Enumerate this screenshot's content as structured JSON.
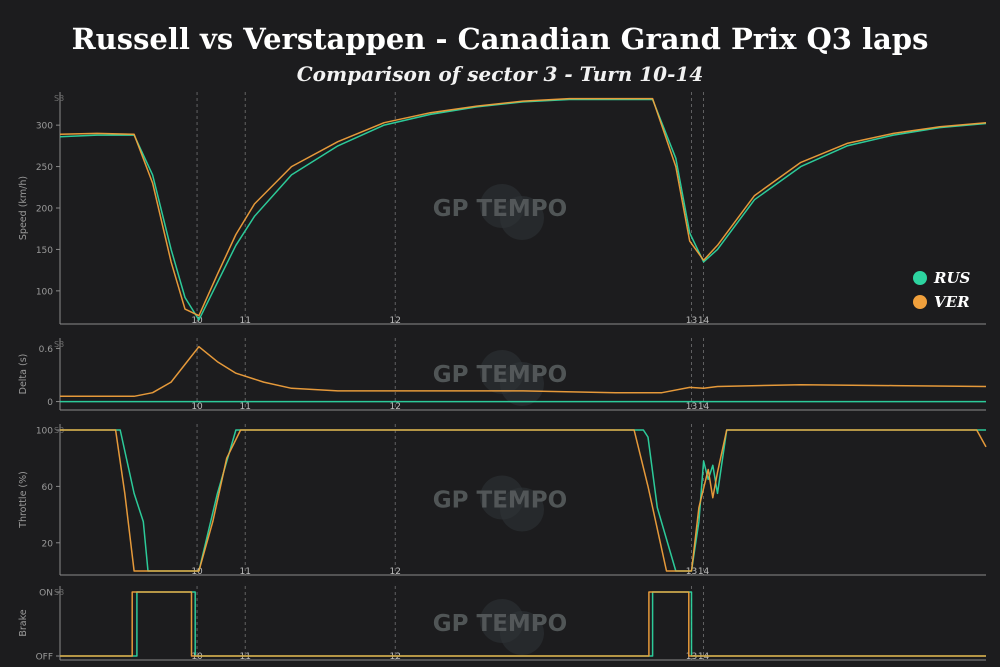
{
  "title": "Russell vs Verstappen - Canadian Grand Prix Q3 laps",
  "subtitle": "Comparison of sector 3 - Turn 10-14",
  "watermark": "GP TEMPO",
  "colors": {
    "RUS": "#2dd4a0",
    "VER": "#f0a03c",
    "background": "#1c1c1e",
    "axis": "#8a8a8a"
  },
  "legend": {
    "placement": "right",
    "entries": [
      {
        "label": "RUS",
        "color": "#2dd4a0"
      },
      {
        "label": "VER",
        "color": "#f0a03c"
      }
    ]
  },
  "chart_data": [
    {
      "type": "line",
      "ylabel": "Speed (km/h)",
      "ylim": [
        60,
        340
      ],
      "yticks": [
        100,
        150,
        200,
        250,
        300
      ],
      "sector_label": "S3",
      "markers": [
        {
          "x": 0.148,
          "label": "10"
        },
        {
          "x": 0.2,
          "label": "11"
        },
        {
          "x": 0.362,
          "label": "12"
        },
        {
          "x": 0.682,
          "label": "13"
        },
        {
          "x": 0.695,
          "label": "14"
        }
      ],
      "series": [
        {
          "name": "RUS",
          "x": [
            0,
            0.04,
            0.08,
            0.1,
            0.12,
            0.135,
            0.15,
            0.17,
            0.19,
            0.21,
            0.25,
            0.3,
            0.35,
            0.4,
            0.45,
            0.5,
            0.55,
            0.59,
            0.64,
            0.665,
            0.68,
            0.695,
            0.71,
            0.75,
            0.8,
            0.85,
            0.9,
            0.95,
            1.0
          ],
          "y": [
            286,
            288,
            288,
            240,
            150,
            92,
            65,
            110,
            155,
            190,
            240,
            275,
            300,
            313,
            322,
            328,
            331,
            331,
            331,
            260,
            170,
            135,
            150,
            210,
            250,
            275,
            288,
            297,
            302
          ]
        },
        {
          "name": "VER",
          "x": [
            0,
            0.04,
            0.08,
            0.1,
            0.12,
            0.135,
            0.15,
            0.17,
            0.19,
            0.21,
            0.25,
            0.3,
            0.35,
            0.4,
            0.45,
            0.5,
            0.55,
            0.59,
            0.64,
            0.665,
            0.68,
            0.695,
            0.71,
            0.75,
            0.8,
            0.85,
            0.9,
            0.95,
            1.0
          ],
          "y": [
            289,
            290,
            289,
            230,
            135,
            78,
            70,
            120,
            168,
            205,
            250,
            280,
            303,
            315,
            323,
            329,
            332,
            332,
            332,
            250,
            160,
            137,
            155,
            215,
            255,
            278,
            290,
            298,
            303
          ]
        }
      ]
    },
    {
      "type": "line",
      "ylabel": "Delta (s)",
      "ylim": [
        -0.05,
        0.65
      ],
      "yticks": [
        0,
        0.6
      ],
      "sector_label": "S3",
      "markers": [
        {
          "x": 0.148,
          "label": "10"
        },
        {
          "x": 0.2,
          "label": "11"
        },
        {
          "x": 0.362,
          "label": "12"
        },
        {
          "x": 0.682,
          "label": "13"
        },
        {
          "x": 0.695,
          "label": "14"
        }
      ],
      "series": [
        {
          "name": "RUS",
          "x": [
            0,
            1.0
          ],
          "y": [
            0,
            0
          ]
        },
        {
          "name": "VER",
          "x": [
            0,
            0.04,
            0.08,
            0.1,
            0.12,
            0.135,
            0.15,
            0.17,
            0.19,
            0.22,
            0.25,
            0.3,
            0.4,
            0.5,
            0.6,
            0.65,
            0.68,
            0.695,
            0.71,
            0.8,
            0.9,
            1.0
          ],
          "y": [
            0.06,
            0.06,
            0.06,
            0.1,
            0.22,
            0.42,
            0.62,
            0.45,
            0.32,
            0.22,
            0.15,
            0.12,
            0.12,
            0.12,
            0.1,
            0.1,
            0.16,
            0.15,
            0.17,
            0.19,
            0.18,
            0.17
          ]
        }
      ]
    },
    {
      "type": "line",
      "ylabel": "Throttle (%)",
      "ylim": [
        0,
        100
      ],
      "yticks": [
        20,
        60,
        100
      ],
      "sector_label": "S3",
      "markers": [
        {
          "x": 0.148,
          "label": "10"
        },
        {
          "x": 0.2,
          "label": "11"
        },
        {
          "x": 0.362,
          "label": "12"
        },
        {
          "x": 0.682,
          "label": "13"
        },
        {
          "x": 0.695,
          "label": "14"
        }
      ],
      "series": [
        {
          "name": "RUS",
          "x": [
            0,
            0.065,
            0.08,
            0.09,
            0.095,
            0.15,
            0.17,
            0.19,
            0.2,
            0.63,
            0.635,
            0.645,
            0.665,
            0.682,
            0.69,
            0.695,
            0.7,
            0.705,
            0.71,
            0.72,
            0.725,
            1.0
          ],
          "y": [
            100,
            100,
            55,
            35,
            0,
            0,
            55,
            100,
            100,
            100,
            95,
            45,
            0,
            0,
            35,
            78,
            65,
            75,
            55,
            100,
            100,
            100
          ]
        },
        {
          "name": "VER",
          "x": [
            0,
            0.06,
            0.07,
            0.08,
            0.15,
            0.165,
            0.18,
            0.195,
            0.21,
            0.62,
            0.635,
            0.655,
            0.682,
            0.69,
            0.7,
            0.705,
            0.71,
            0.72,
            0.73,
            0.99,
            1.0
          ],
          "y": [
            100,
            100,
            55,
            0,
            0,
            35,
            80,
            100,
            100,
            100,
            60,
            0,
            0,
            45,
            72,
            52,
            70,
            100,
            100,
            100,
            88
          ]
        }
      ]
    },
    {
      "type": "line",
      "ylabel": "Brake",
      "ylim": [
        0,
        1
      ],
      "yticks": [
        0,
        1
      ],
      "ytick_labels": [
        "OFF",
        "ON"
      ],
      "sector_label": "S3",
      "markers": [
        {
          "x": 0.148,
          "label": "10"
        },
        {
          "x": 0.2,
          "label": "11"
        },
        {
          "x": 0.362,
          "label": "12"
        },
        {
          "x": 0.682,
          "label": "13"
        },
        {
          "x": 0.695,
          "label": "14"
        }
      ],
      "series": [
        {
          "name": "RUS",
          "x": [
            0,
            0.083,
            0.083,
            0.146,
            0.146,
            0.64,
            0.64,
            0.682,
            0.682,
            1.0
          ],
          "y": [
            0,
            0,
            1,
            1,
            0,
            0,
            1,
            1,
            0,
            0
          ]
        },
        {
          "name": "VER",
          "x": [
            0,
            0.078,
            0.078,
            0.142,
            0.142,
            0.636,
            0.636,
            0.679,
            0.679,
            1.0
          ],
          "y": [
            0,
            0,
            1,
            1,
            0,
            0,
            1,
            1,
            0,
            0
          ]
        }
      ]
    }
  ]
}
